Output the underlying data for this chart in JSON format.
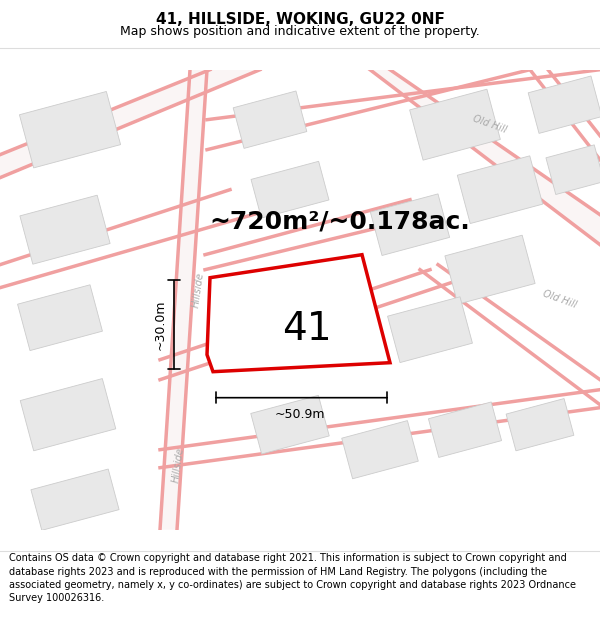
{
  "title": "41, HILLSIDE, WOKING, GU22 0NF",
  "subtitle": "Map shows position and indicative extent of the property.",
  "area_label": "~720m²/~0.178ac.",
  "plot_number": "41",
  "dim_width": "~50.9m",
  "dim_height": "~30.0m",
  "footer": "Contains OS data © Crown copyright and database right 2021. This information is subject to Crown copyright and database rights 2023 and is reproduced with the permission of HM Land Registry. The polygons (including the associated geometry, namely x, y co-ordinates) are subject to Crown copyright and database rights 2023 Ordnance Survey 100026316.",
  "bg_color": "#ffffff",
  "map_bg": "#ffffff",
  "road_color": "#f0a0a0",
  "road_fill": "#f8f0f0",
  "plot_outline_color": "#dd0000",
  "building_fill": "#e8e8e8",
  "building_outline": "#cccccc",
  "title_fontsize": 11,
  "subtitle_fontsize": 9,
  "footer_fontsize": 7,
  "area_fontsize": 18,
  "road_label_color": "#aaaaaa",
  "road_label": "Hillside",
  "road_label2": "Old Hill",
  "dim_label_fontsize": 9,
  "plot_num_fontsize": 28
}
